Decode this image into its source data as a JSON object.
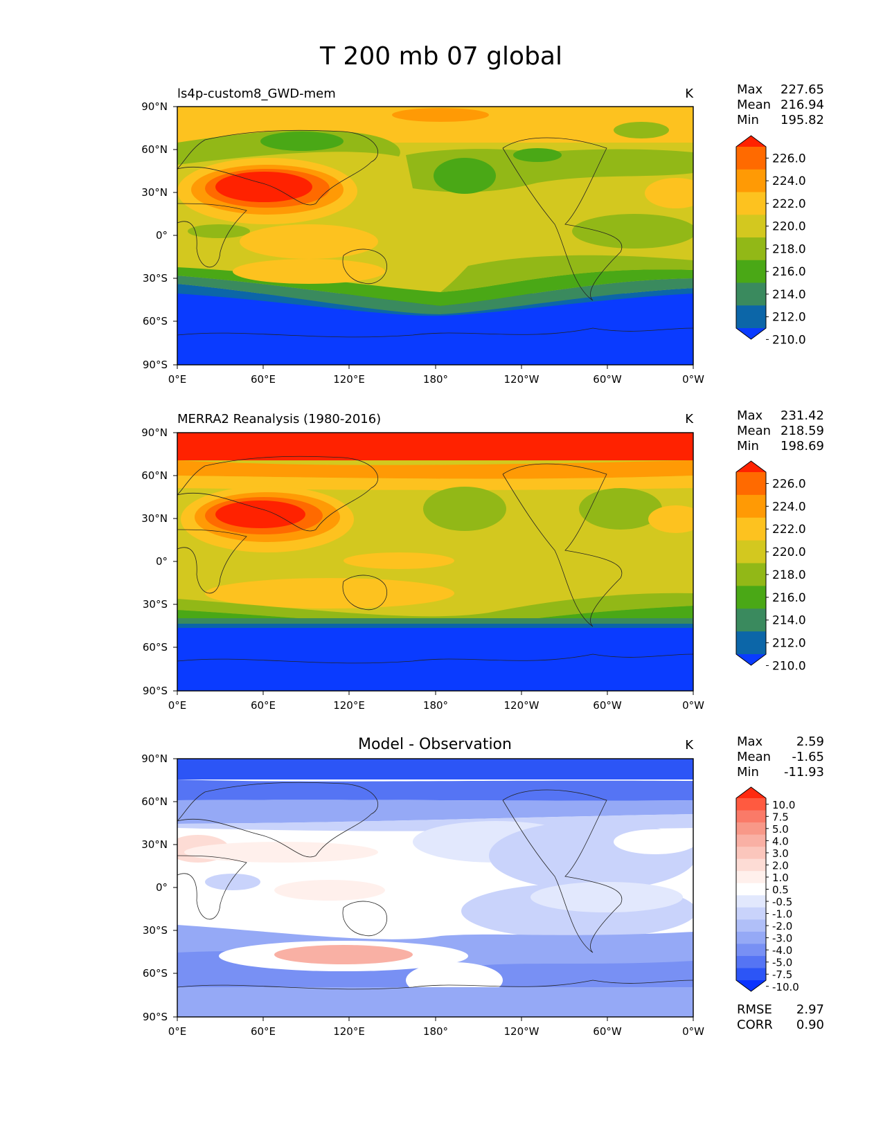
{
  "figure": {
    "title": "T 200 mb 07 global"
  },
  "axes": {
    "lat_labels": [
      "90°N",
      "60°N",
      "30°N",
      "0°",
      "30°S",
      "60°S",
      "90°S"
    ],
    "lon_labels": [
      "0°E",
      "60°E",
      "120°E",
      "180°",
      "120°W",
      "60°W",
      "0°W"
    ]
  },
  "panels": [
    {
      "title": "ls4p-custom8_GWD-mem",
      "units": "K",
      "stats": [
        {
          "label": "Max",
          "value": "227.65"
        },
        {
          "label": "Mean",
          "value": "216.94"
        },
        {
          "label": "Min",
          "value": "195.82"
        }
      ],
      "colorbar": {
        "labels": [
          "226.0",
          "224.0",
          "222.0",
          "220.0",
          "218.0",
          "216.0",
          "214.0",
          "212.0",
          "210.0"
        ],
        "colors": [
          "#ff2200",
          "#ff6a00",
          "#ff9a05",
          "#fdc21f",
          "#d3c81f",
          "#92b817",
          "#4aa816",
          "#3a8a5e",
          "#0c66a8",
          "#0a3bff"
        ]
      },
      "map_layers": [
        {
          "level": "210.0",
          "color": "#0a3bff"
        },
        {
          "level": "212.0",
          "color": "#0c66a8"
        },
        {
          "level": "214.0",
          "color": "#3a8a5e"
        },
        {
          "level": "216.0",
          "color": "#4aa816"
        },
        {
          "level": "218.0",
          "color": "#92b817"
        },
        {
          "level": "220.0",
          "color": "#d3c81f"
        },
        {
          "level": "222.0",
          "color": "#fdc21f"
        },
        {
          "level": "224.0",
          "color": "#ff9a05"
        },
        {
          "level": "226.0",
          "color": "#ff2200"
        }
      ]
    },
    {
      "title": "MERRA2 Reanalysis (1980-2016)",
      "units": "K",
      "stats": [
        {
          "label": "Max",
          "value": "231.42"
        },
        {
          "label": "Mean",
          "value": "218.59"
        },
        {
          "label": "Min",
          "value": "198.69"
        }
      ],
      "colorbar": {
        "labels": [
          "226.0",
          "224.0",
          "222.0",
          "220.0",
          "218.0",
          "216.0",
          "214.0",
          "212.0",
          "210.0"
        ],
        "colors": [
          "#ff2200",
          "#ff6a00",
          "#ff9a05",
          "#fdc21f",
          "#d3c81f",
          "#92b817",
          "#4aa816",
          "#3a8a5e",
          "#0c66a8",
          "#0a3bff"
        ]
      }
    },
    {
      "title": "Model - Observation",
      "units": "K",
      "stats": [
        {
          "label": "Max",
          "value": "2.59"
        },
        {
          "label": "Mean",
          "value": "-1.65"
        },
        {
          "label": "Min",
          "value": "-11.93"
        }
      ],
      "extra_stats": [
        {
          "label": "RMSE",
          "value": "2.97"
        },
        {
          "label": "CORR",
          "value": "0.90"
        }
      ],
      "colorbar": {
        "labels": [
          "10.0",
          "7.5",
          "5.0",
          "4.0",
          "3.0",
          "2.0",
          "1.0",
          "0.5",
          "-0.5",
          "-1.0",
          "-2.0",
          "-3.0",
          "-4.0",
          "-5.0",
          "-7.5",
          "-10.0"
        ],
        "colors": [
          "#ff2a10",
          "#ff5a40",
          "#fa7a68",
          "#f89888",
          "#f9b0a4",
          "#fbc6bc",
          "#fddcd5",
          "#fff0ec",
          "#ffffff",
          "#e2e8fd",
          "#c9d3fb",
          "#b0bff8",
          "#95a9f6",
          "#7890f4",
          "#5574f4",
          "#2c55f6",
          "#0a33ff"
        ]
      }
    }
  ]
}
